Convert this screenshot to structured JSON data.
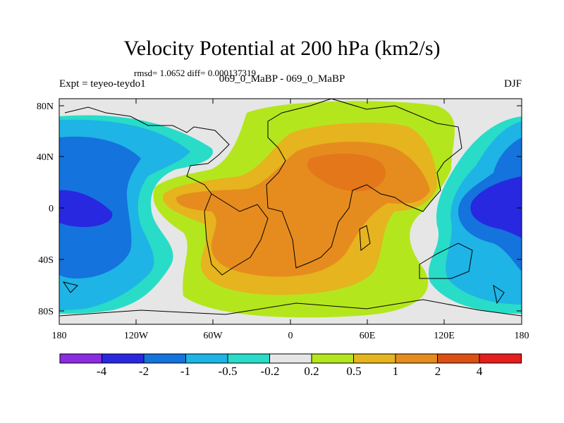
{
  "title": "Velocity Potential at 200 hPa (km2/s)",
  "stats": "rmsd= 1.0652 diff= 0.000137319",
  "header_left": "Expt = teyeo-teydo1",
  "header_center": "069_0_MaBP - 069_0_MaBP",
  "header_right": "DJF",
  "lat_labels": [
    "80N",
    "40N",
    "0",
    "40S",
    "80S"
  ],
  "lon_labels": [
    "180",
    "120W",
    "60W",
    "0",
    "60E",
    "120E",
    "180"
  ],
  "colorbar": {
    "colors": [
      "#8b2be2",
      "#2828e0",
      "#1473dc",
      "#1eb4e6",
      "#28dcc8",
      "#e6e6e6",
      "#b4e61e",
      "#e6b41e",
      "#e68c1e",
      "#dc5014",
      "#e61e1e"
    ],
    "labels": [
      "-4",
      "-2",
      "-1",
      "-0.5",
      "-0.2",
      "0.2",
      "0.5",
      "1",
      "2",
      "4"
    ]
  }
}
